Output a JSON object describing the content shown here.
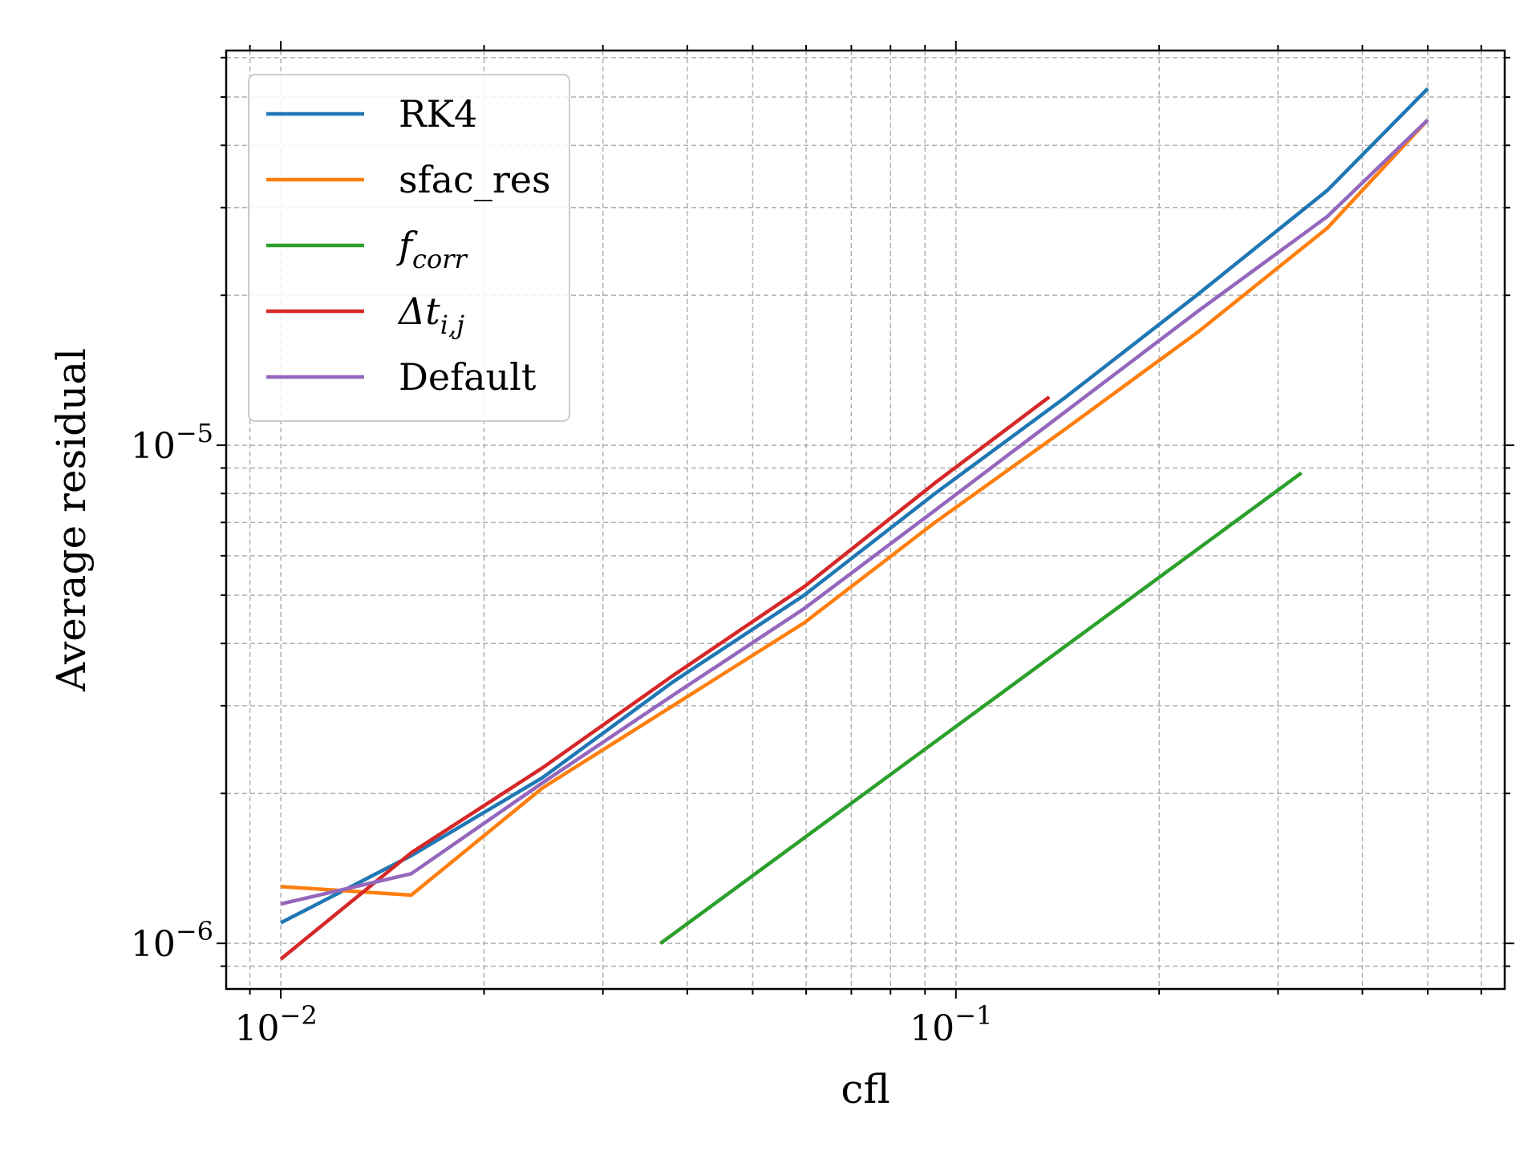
{
  "chart_data": {
    "type": "line",
    "xlabel": "cfl",
    "ylabel": "Average residual",
    "xscale": "log",
    "yscale": "log",
    "xlim": [
      0.0083,
      0.65
    ],
    "ylim": [
      8.1e-07,
      6.2e-05
    ],
    "grid": true,
    "legend_position": "upper-left",
    "x_tick_labels": [
      {
        "value": 0.01,
        "base": "10",
        "exp": "−2"
      },
      {
        "value": 0.1,
        "base": "10",
        "exp": "−1"
      }
    ],
    "y_tick_labels": [
      {
        "value": 1e-06,
        "base": "10",
        "exp": "−6"
      },
      {
        "value": 1e-05,
        "base": "10",
        "exp": "−5"
      }
    ],
    "series": [
      {
        "name": "RK4",
        "label_main": "RK4",
        "label_sub": "",
        "color": "#1f77b4",
        "x": [
          0.01,
          0.0156,
          0.0244,
          0.0381,
          0.0596,
          0.0931,
          0.1455,
          0.2273,
          0.3551,
          0.5
        ],
        "y": [
          1.1e-06,
          1.5e-06,
          2.15e-06,
          3.35e-06,
          5e-06,
          8e-06,
          1.25e-05,
          2e-05,
          3.25e-05,
          5.2e-05
        ]
      },
      {
        "name": "sfac_res",
        "label_main": "sfac_res",
        "label_sub": "",
        "color": "#ff7f0e",
        "x": [
          0.01,
          0.0156,
          0.0244,
          0.0381,
          0.0596,
          0.0931,
          0.1455,
          0.2273,
          0.3551,
          0.5
        ],
        "y": [
          1.3e-06,
          1.25e-06,
          2.05e-06,
          3e-06,
          4.4e-06,
          7e-06,
          1.08e-05,
          1.68e-05,
          2.73e-05,
          4.5e-05
        ]
      },
      {
        "name": "f_corr",
        "label_main": "f",
        "label_sub": "corr",
        "color": "#2ca02c",
        "x": [
          0.0365,
          0.325
        ],
        "y": [
          1e-06,
          8.8e-06
        ]
      },
      {
        "name": "Δt_i,j",
        "label_main": "Δt",
        "label_sub": "i,j",
        "color": "#d62728",
        "x": [
          0.01,
          0.0156,
          0.0244,
          0.0381,
          0.0596,
          0.0931,
          0.1375
        ],
        "y": [
          9.3e-07,
          1.52e-06,
          2.25e-06,
          3.45e-06,
          5.2e-06,
          8.4e-06,
          1.25e-05
        ]
      },
      {
        "name": "Default",
        "label_main": "Default",
        "label_sub": "",
        "color": "#9467bd",
        "x": [
          0.01,
          0.0156,
          0.0244,
          0.0381,
          0.0596,
          0.0931,
          0.1455,
          0.2273,
          0.3551,
          0.5
        ],
        "y": [
          1.2e-06,
          1.38e-06,
          2.1e-06,
          3.15e-06,
          4.7e-06,
          7.4e-06,
          1.17e-05,
          1.85e-05,
          2.88e-05,
          4.5e-05
        ]
      }
    ]
  }
}
